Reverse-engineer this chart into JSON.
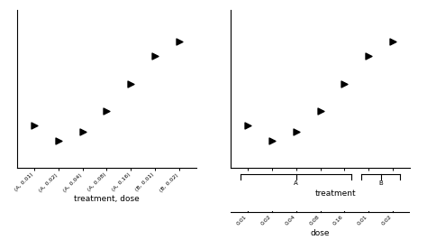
{
  "left_x": [
    1,
    2,
    3,
    4,
    5,
    6,
    7
  ],
  "left_y": [
    3.5,
    2.8,
    3.2,
    4.2,
    5.5,
    6.8,
    7.5
  ],
  "left_xtick_labels": [
    "(A, 0.01)",
    "(A, 0.02)",
    "(A, 0.04)",
    "(A, 0.08)",
    "(A, 0.16)",
    "(B, 0.01)",
    "(B, 0.02)"
  ],
  "left_xlabel": "treatment, dose",
  "right_x": [
    1,
    2,
    3,
    4,
    5,
    6,
    7
  ],
  "right_y": [
    3.5,
    2.8,
    3.2,
    4.2,
    5.5,
    6.8,
    7.5
  ],
  "right_dose_labels": [
    "0.01",
    "0.02",
    "0.04",
    "0.08",
    "0.16",
    "0.01",
    "0.02"
  ],
  "right_xlabel_treatment": "treatment",
  "right_xlabel_dose": "dose",
  "marker": ">",
  "marker_size": 5,
  "marker_color": "black",
  "xlim": [
    0.3,
    7.7
  ],
  "ylim": [
    1.5,
    9.0
  ]
}
